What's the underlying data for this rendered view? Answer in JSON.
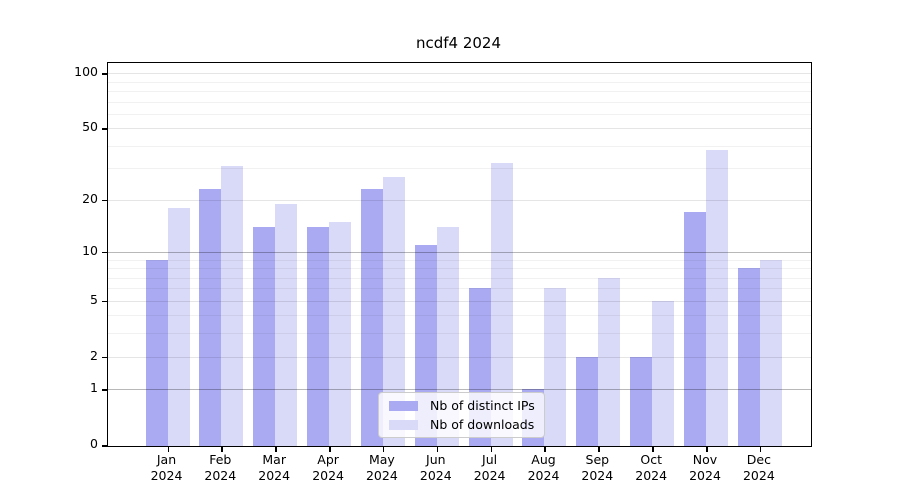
{
  "title": "ncdf4 2024",
  "legend": {
    "items": [
      {
        "label": "Nb of distinct IPs",
        "color": "#aaaaf3"
      },
      {
        "label": "Nb of downloads",
        "color": "#d9d9f8"
      }
    ]
  },
  "chart_data": {
    "type": "bar",
    "title": "ncdf4 2024",
    "categories": [
      "Jan 2024",
      "Feb 2024",
      "Mar 2024",
      "Apr 2024",
      "May 2024",
      "Jun 2024",
      "Jul 2024",
      "Aug 2024",
      "Sep 2024",
      "Oct 2024",
      "Nov 2024",
      "Dec 2024"
    ],
    "series": [
      {
        "name": "Nb of distinct IPs",
        "color": "#aaaaf3",
        "values": [
          9,
          23,
          14,
          14,
          23,
          11,
          6,
          1,
          2,
          2,
          17,
          8
        ]
      },
      {
        "name": "Nb of downloads",
        "color": "#d9d9f8",
        "values": [
          18,
          31,
          19,
          15,
          27,
          14,
          32,
          6,
          7,
          5,
          38,
          9
        ]
      }
    ],
    "xlabel": "",
    "ylabel": "",
    "yscale": "log1p",
    "ylim": [
      0,
      114
    ],
    "yticks": [
      100,
      50,
      20,
      10,
      5,
      2,
      1,
      0
    ],
    "minor_gridline_values": [
      3,
      4,
      6,
      7,
      8,
      9,
      30,
      40,
      60,
      70,
      80,
      90
    ],
    "emphasized_gridline_values": [
      10,
      1
    ],
    "grid": "on",
    "legend_position": "lower center"
  },
  "colors": {
    "grid_minor": "rgba(0,0,0,0.055)",
    "grid_major": "rgba(0,0,0,0.10)",
    "grid_emphasized": "rgba(0,0,0,0.28)"
  }
}
